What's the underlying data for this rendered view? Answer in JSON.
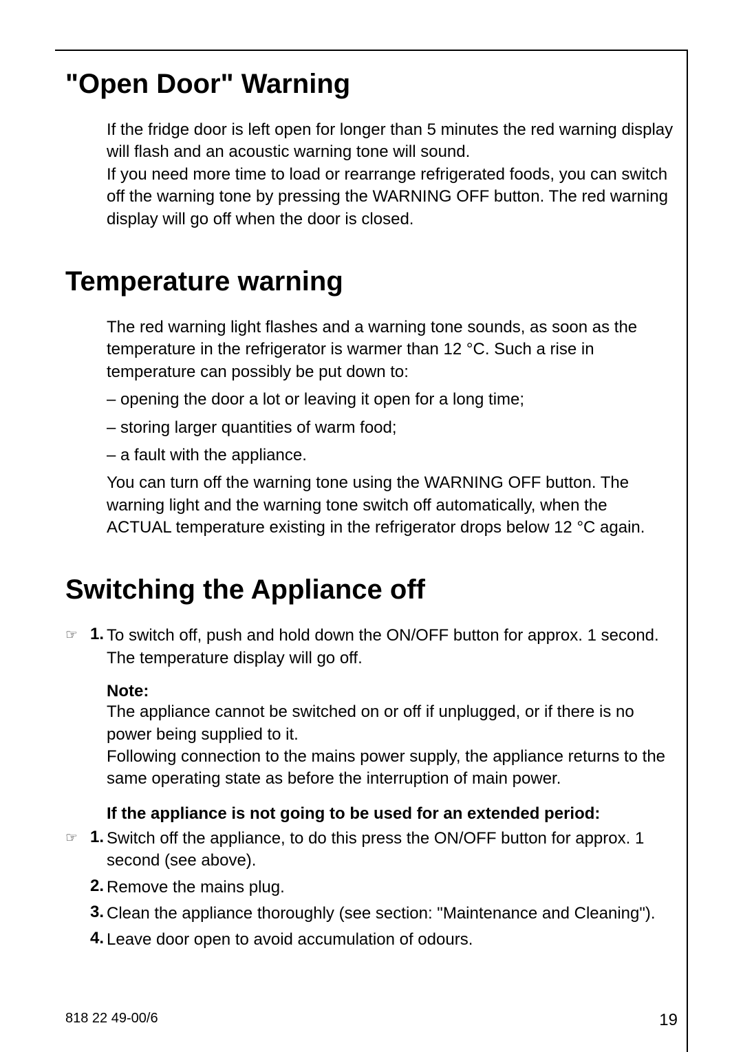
{
  "sections": {
    "open_door": {
      "heading": "\"Open Door\" Warning",
      "para": "If the fridge door is left open for longer than 5 minutes the red warning display will flash and an acoustic warning tone will sound.\nIf you need more time to load or rearrange refrigerated foods, you can switch off the warning tone by pressing the WARNING OFF button. The red warning display will go off when the door is closed."
    },
    "temp_warning": {
      "heading": "Temperature warning",
      "para1": "The red warning light flashes and a warning tone sounds, as soon as the temperature in the refrigerator is warmer than 12 °C. Such a rise in temperature can possibly be put down to:",
      "bullets": [
        "– opening the door a lot or leaving it open for a long time;",
        "– storing larger quantities of warm food;",
        "– a fault with the appliance."
      ],
      "para2": "You can turn off the warning tone using the WARNING OFF button. The warning light and the warning tone switch off automatically, when the ACTUAL temperature existing in the refrigerator drops below 12 °C again."
    },
    "switch_off": {
      "heading": "Switching the Appliance off",
      "step1_num": "1.",
      "step1": "To switch off, push and hold down the ON/OFF button for approx. 1 second. The temperature display will go off.",
      "note_label": "Note:",
      "note_body": "The appliance cannot be switched on or off if unplugged, or if there is no power being supplied to it.\nFollowing connection to the mains power supply, the appliance returns to the same operating state as before the interruption of main power.",
      "extended_heading": "If the appliance is not going to be used for an extended period:",
      "ext_step1_num": "1.",
      "ext_step1": "Switch off the appliance, to do this press the ON/OFF button for approx. 1 second (see above).",
      "ext_step2_num": "2.",
      "ext_step2": "Remove the mains plug.",
      "ext_step3_num": "3.",
      "ext_step3": "Clean the appliance thoroughly (see section: \"Maintenance and Cleaning\").",
      "ext_step4_num": "4.",
      "ext_step4": "Leave door open to avoid accumulation of odours."
    }
  },
  "footer": {
    "doc_code": "818 22 49-00/6",
    "page_num": "19"
  },
  "style": {
    "heading_fontsize": 40,
    "body_fontsize": 24,
    "text_color": "#000000",
    "background": "#ffffff",
    "border_color": "#000000"
  }
}
